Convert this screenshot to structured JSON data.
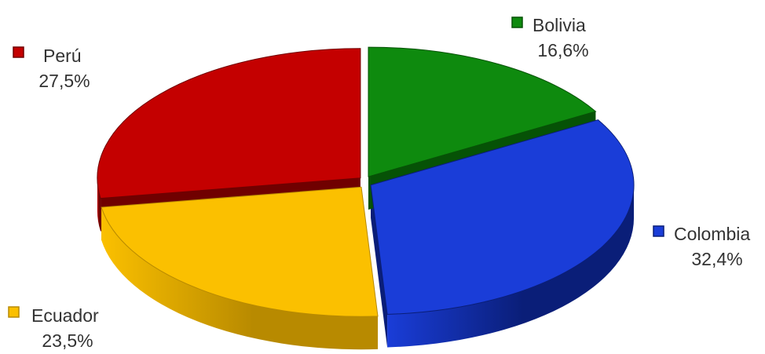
{
  "chart_data": {
    "type": "pie",
    "style": "3d-exploded",
    "title": "",
    "legend": "inline-labels",
    "slices": [
      {
        "label": "Bolivia",
        "value": 16.6,
        "value_label": "16,6%",
        "color": "#0e8a0e",
        "dark": "#065206"
      },
      {
        "label": "Colombia",
        "value": 32.4,
        "value_label": "32,4%",
        "color": "#1a3dd8",
        "dark": "#0a1e78"
      },
      {
        "label": "Ecuador",
        "value": 23.5,
        "value_label": "23,5%",
        "color": "#fbc000",
        "dark": "#b88a00"
      },
      {
        "label": "Perú",
        "value": 27.5,
        "value_label": "27,5%",
        "color": "#c40000",
        "dark": "#700000"
      }
    ]
  }
}
